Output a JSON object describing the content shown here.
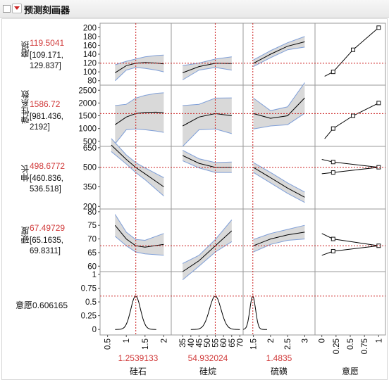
{
  "title": "预测刻画器",
  "colors": {
    "ci_fill": "#d9d9d9",
    "ci_edge": "#7f9fd8",
    "curve": "#000000",
    "ref_line": "#cc2222",
    "value_text": "#d13b3b"
  },
  "icons": {
    "disclose": "toggle-box-icon",
    "menu": "red-triangle-menu-icon"
  },
  "responses": [
    {
      "name": "磨损",
      "value": "119.5041",
      "ci": "[109.171,\n129.837]"
    },
    {
      "name": "弹性系数",
      "value": "1586.72",
      "ci": "[981.436,\n2192]"
    },
    {
      "name": "伸长",
      "value": "498.6772",
      "ci": "[460.836,\n536.518]"
    },
    {
      "name": "硬度",
      "value": "67.49729",
      "ci": "[65.1635,\n69.8311]"
    }
  ],
  "desirability": {
    "label": "意愿",
    "value": "0.606165"
  },
  "factors": [
    {
      "name": "硅石",
      "value": "1.2539133",
      "ticks": [
        "0.5",
        "1",
        "1.5",
        "2"
      ]
    },
    {
      "name": "硅烷",
      "value": "54.932024",
      "ticks": [
        "35",
        "40",
        "45",
        "50",
        "55",
        "60",
        "65",
        "70"
      ]
    },
    {
      "name": "硫磺",
      "value": "1.4835",
      "ticks": [
        "1.5",
        "2",
        "2.5",
        "3"
      ]
    },
    {
      "name": "意愿",
      "ticks": [
        "0",
        "0.25",
        "0.5",
        "0.75",
        "1"
      ]
    }
  ],
  "row_axes": [
    [
      "200",
      "180",
      "160",
      "140",
      "120",
      "100",
      "80"
    ],
    [
      "2500",
      "2000",
      "1500",
      "1000",
      "500"
    ],
    [
      "650",
      "500",
      "350",
      "200"
    ],
    [
      "80",
      "75",
      "70",
      "65",
      "60"
    ],
    [
      "1",
      "0.75",
      "0.5",
      "0.25",
      "0"
    ]
  ],
  "row_axis_values": [
    [
      200,
      180,
      160,
      140,
      120,
      100,
      80
    ],
    [
      2500,
      2000,
      1500,
      1000,
      500
    ],
    [
      650,
      500,
      350,
      200
    ],
    [
      80,
      75,
      70,
      65,
      60
    ],
    [
      1,
      0.75,
      0.5,
      0.25,
      0
    ]
  ],
  "row_ranges": [
    [
      70,
      210
    ],
    [
      300,
      2700
    ],
    [
      180,
      660
    ],
    [
      58,
      81
    ],
    [
      -0.1,
      1.05
    ]
  ],
  "col_ranges": [
    [
      0.3,
      2.2
    ],
    [
      28,
      72
    ],
    [
      1.2,
      3.3
    ],
    [
      -0.12,
      1.12
    ]
  ],
  "factor_current": [
    1.2539133,
    54.932024,
    1.4835
  ],
  "response_current": [
    119.5041,
    1586.72,
    498.6772,
    67.49729,
    0.606165
  ],
  "chart_data": {
    "type": "line",
    "factor_names": [
      "硅石",
      "硅烷",
      "硫磺"
    ],
    "response_names": [
      "磨损",
      "弹性系数",
      "伸长",
      "硬度",
      "意愿"
    ],
    "traces": [
      [
        {
          "x": [
            0.7,
            1.0,
            1.25,
            1.5,
            1.8,
            2.0
          ],
          "y": [
            98,
            114,
            119.5,
            121,
            120,
            118
          ],
          "lo": [
            80,
            104,
            110,
            108,
            104,
            100
          ],
          "hi": [
            116,
            124,
            129,
            134,
            137,
            138
          ]
        },
        {
          "x": [
            35,
            45,
            55,
            65
          ],
          "y": [
            98,
            112,
            119.5,
            119
          ],
          "lo": [
            82,
            104,
            110,
            104
          ],
          "hi": [
            114,
            120,
            129,
            134
          ]
        },
        {
          "x": [
            1.5,
            2.0,
            2.5,
            3.0
          ],
          "y": [
            119.5,
            140,
            158,
            168
          ],
          "lo": [
            112,
            132,
            150,
            156
          ],
          "hi": [
            127,
            148,
            166,
            180
          ]
        }
      ],
      [
        {
          "x": [
            0.7,
            1.0,
            1.25,
            1.5,
            1.8,
            2.0
          ],
          "y": [
            1150,
            1450,
            1586.7,
            1630,
            1640,
            1620
          ],
          "lo": [
            400,
            950,
            980,
            950,
            900,
            850
          ],
          "hi": [
            1900,
            1950,
            2192,
            2300,
            2380,
            2400
          ]
        },
        {
          "x": [
            35,
            45,
            55,
            65
          ],
          "y": [
            1100,
            1450,
            1586.7,
            1500
          ],
          "lo": [
            300,
            950,
            980,
            800
          ],
          "hi": [
            1900,
            1950,
            2192,
            2200
          ]
        },
        {
          "x": [
            1.5,
            2.0,
            2.5,
            3.0
          ],
          "y": [
            1586.7,
            1400,
            1500,
            2200
          ],
          "lo": [
            980,
            1100,
            1150,
            1600
          ],
          "hi": [
            2192,
            1700,
            1850,
            2800
          ]
        }
      ],
      [
        {
          "x": [
            0.6,
            1.0,
            1.25,
            1.5,
            2.0
          ],
          "y": [
            670,
            560,
            498.7,
            450,
            350
          ],
          "lo": [
            620,
            525,
            460,
            405,
            280
          ],
          "hi": [
            720,
            595,
            536,
            495,
            420
          ]
        },
        {
          "x": [
            35,
            45,
            55,
            65
          ],
          "y": [
            590,
            530,
            498.7,
            500
          ],
          "lo": [
            550,
            495,
            460,
            460
          ],
          "hi": [
            630,
            565,
            536,
            540
          ]
        },
        {
          "x": [
            1.5,
            2.0,
            2.5,
            3.0
          ],
          "y": [
            498.7,
            420,
            340,
            270
          ],
          "lo": [
            460,
            380,
            300,
            230
          ],
          "hi": [
            536,
            460,
            380,
            310
          ]
        }
      ],
      [
        {
          "x": [
            0.7,
            1.0,
            1.25,
            1.5,
            2.0
          ],
          "y": [
            75,
            70,
            67.5,
            67,
            68
          ],
          "lo": [
            71,
            67.5,
            65.2,
            64.5,
            64
          ],
          "hi": [
            79,
            72.5,
            69.8,
            69.5,
            72
          ]
        },
        {
          "x": [
            35,
            45,
            55,
            65
          ],
          "y": [
            58,
            62,
            67.5,
            73
          ],
          "lo": [
            55,
            60,
            65.2,
            69
          ],
          "hi": [
            61,
            64,
            69.8,
            77
          ]
        },
        {
          "x": [
            1.5,
            2.0,
            2.5,
            3.0
          ],
          "y": [
            67.5,
            70,
            71.5,
            72.5
          ],
          "lo": [
            65.2,
            68,
            69.5,
            70
          ],
          "hi": [
            69.8,
            72,
            73.5,
            75
          ]
        }
      ]
    ],
    "desirability_curves": [
      {
        "x": [
          0.7,
          1.25,
          1.8
        ],
        "y": [
          0,
          0.606,
          0
        ]
      },
      {
        "x": [
          40,
          54.93,
          70
        ],
        "y": [
          0,
          0.606,
          0
        ]
      },
      {
        "x": [
          1.2,
          1.48,
          1.9
        ],
        "y": [
          0.1,
          0.606,
          0
        ]
      }
    ],
    "desirability_functions": [
      {
        "points": [
          [
            0.05,
            90
          ],
          [
            0.2,
            100
          ],
          [
            0.55,
            150
          ],
          [
            1.0,
            200
          ]
        ]
      },
      {
        "points": [
          [
            0.05,
            600
          ],
          [
            0.2,
            1000
          ],
          [
            0.55,
            1500
          ],
          [
            1.0,
            2000
          ]
        ]
      },
      {
        "points": [
          [
            0,
            450
          ],
          [
            0.2,
            460
          ],
          [
            1.0,
            500
          ],
          [
            0.2,
            540
          ],
          [
            0,
            560
          ]
        ]
      },
      {
        "points": [
          [
            0,
            64
          ],
          [
            0.2,
            65.5
          ],
          [
            1.0,
            67.5
          ],
          [
            0.2,
            70
          ],
          [
            0,
            72
          ]
        ]
      }
    ]
  }
}
